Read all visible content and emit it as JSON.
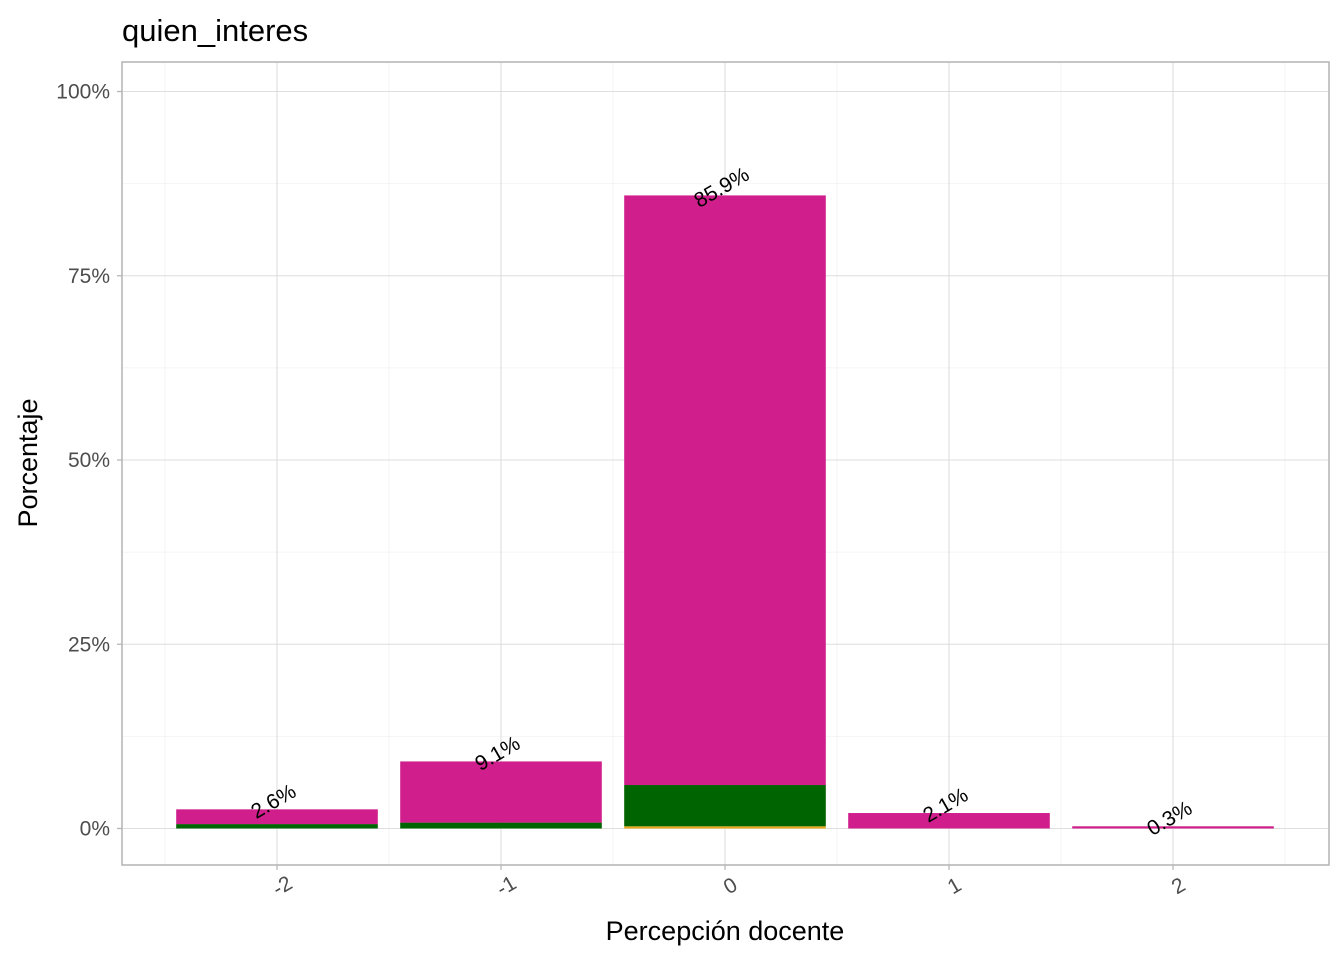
{
  "chart_data": {
    "type": "bar",
    "stacked": true,
    "title": "quien_interes",
    "xlabel": "Percepción docente",
    "ylabel": "Porcentaje",
    "categories": [
      "-2",
      "-1",
      "0",
      "1",
      "2"
    ],
    "totals": [
      2.6,
      9.1,
      85.9,
      2.1,
      0.3
    ],
    "total_labels": [
      "2.6%",
      "9.1%",
      "85.9%",
      "2.1%",
      "0.3%"
    ],
    "series": [
      {
        "color": "#E6A817",
        "values": [
          0.0,
          0.0,
          0.3,
          0.0,
          0.0
        ]
      },
      {
        "color": "#006400",
        "values": [
          0.6,
          0.8,
          5.6,
          0.0,
          0.0
        ]
      },
      {
        "color": "#D01F8C",
        "values": [
          2.0,
          8.3,
          80.0,
          2.1,
          0.3
        ]
      }
    ],
    "ylim": [
      -5,
      104
    ],
    "yticks": [
      0,
      25,
      50,
      75,
      100
    ],
    "ytick_labels": [
      "0%",
      "25%",
      "50%",
      "75%",
      "100%"
    ],
    "x_tick_rotation": 30,
    "grid": true,
    "legend": "none"
  }
}
